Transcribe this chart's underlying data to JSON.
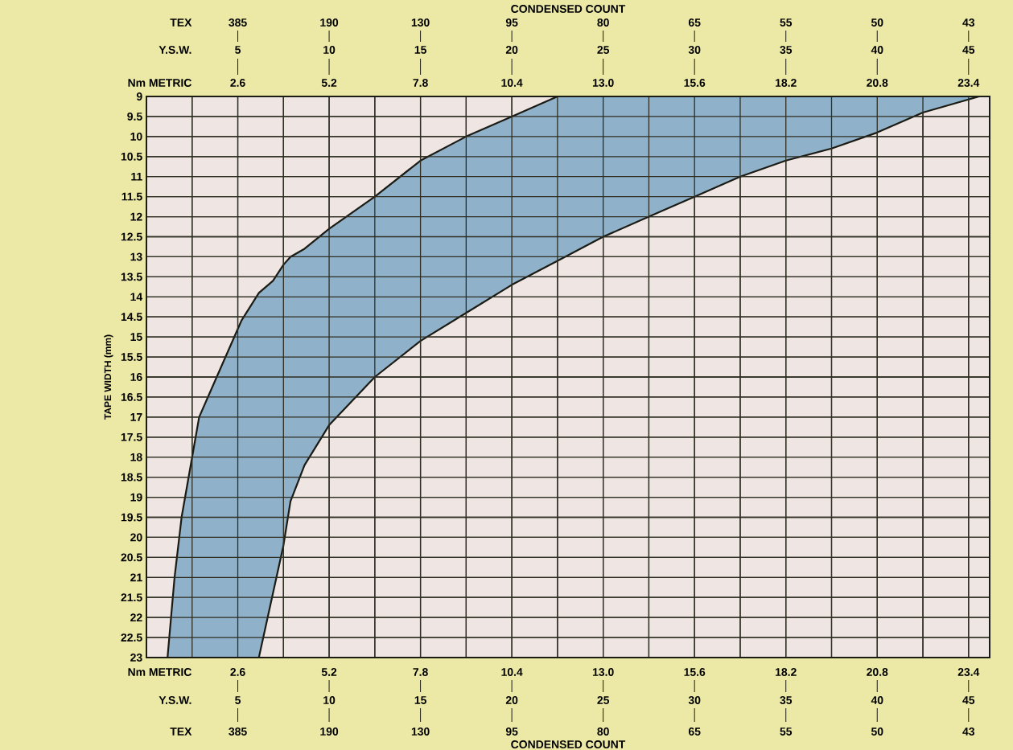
{
  "chart_data": {
    "type": "line",
    "ylabel": "TAPE WIDTH (mm)",
    "annotations": [
      "Nm  METRIC",
      "Y.S.W.",
      "TEX",
      "Nm  METRIC",
      "Y.S.W.",
      "TEX",
      "5",
      "10",
      "15",
      "20",
      "25",
      "30",
      "35",
      "40",
      "45",
      "385",
      "190",
      "130",
      "95",
      "80",
      "65",
      "55",
      "50",
      "43",
      "5",
      "10",
      "15",
      "20",
      "25",
      "30",
      "35",
      "40",
      "45",
      "385",
      "190",
      "130",
      "95",
      "80",
      "65",
      "55",
      "50",
      "43",
      "CONDENSED COUNT",
      "CONDENSED COUNT"
    ],
    "xlim": [
      0,
      24
    ],
    "x2lim": [
      0,
      24
    ],
    "xticks": [
      {
        "value": 1.3,
        "label": null
      },
      {
        "value": 2.6,
        "label": "2.6"
      },
      {
        "value": 3.9,
        "label": null
      },
      {
        "value": 5.2,
        "label": "5.2"
      },
      {
        "value": 6.5,
        "label": null
      },
      {
        "value": 7.8,
        "label": "7.8"
      },
      {
        "value": 9.1,
        "label": null
      },
      {
        "value": 10.4,
        "label": "10.4"
      },
      {
        "value": 11.7,
        "label": null
      },
      {
        "value": 13.0,
        "label": "13.0"
      },
      {
        "value": 14.3,
        "label": null
      },
      {
        "value": 15.6,
        "label": "15.6"
      },
      {
        "value": 16.9,
        "label": null
      },
      {
        "value": 18.2,
        "label": "18.2"
      },
      {
        "value": 19.5,
        "label": null
      },
      {
        "value": 20.8,
        "label": "20.8"
      },
      {
        "value": 22.1,
        "label": null
      },
      {
        "value": 23.4,
        "label": "23.4"
      }
    ],
    "x2ticks": [
      {
        "value": 2.6,
        "label": "2.6"
      },
      {
        "value": 5.2,
        "label": "5.2"
      },
      {
        "value": 7.8,
        "label": "7.8"
      },
      {
        "value": 10.4,
        "label": "10.4"
      },
      {
        "value": 13.0,
        "label": "13.0"
      },
      {
        "value": 15.6,
        "label": "15.6"
      },
      {
        "value": 18.2,
        "label": "18.2"
      },
      {
        "value": 20.8,
        "label": "20.8"
      },
      {
        "value": 23.4,
        "label": "23.4"
      }
    ],
    "ylim": [
      23,
      9
    ],
    "yticks": [
      9,
      9.5,
      10,
      10.5,
      11,
      11.5,
      12,
      12.5,
      13,
      13.5,
      14,
      14.5,
      15,
      15.5,
      16,
      16.5,
      17,
      17.5,
      18,
      18.5,
      19,
      19.5,
      20,
      20.5,
      21,
      21.5,
      22,
      22.5,
      23
    ],
    "grid": true,
    "series": [
      {
        "color": "#8fb1c9",
        "x": [
          0.6,
          0.8,
          1.0,
          1.3,
          1.5,
          2.0,
          2.7,
          3.2,
          3.6,
          3.9,
          4.1,
          4.5,
          5.2,
          6.5,
          7.8,
          9.1,
          10.4,
          11.7,
          13.0,
          14.3,
          15.6,
          16.9,
          18.2,
          19.5,
          20.8,
          22.1,
          23.7
        ],
        "lower": [
          23.0,
          21.0,
          19.5,
          18.0,
          17.0,
          16.0,
          14.6,
          13.9,
          13.6,
          13.2,
          13.0,
          12.8,
          12.3,
          11.5,
          10.6,
          10.0,
          9.5,
          9.0,
          9.0,
          9.0,
          9.0,
          9.0,
          9.0,
          9.0,
          9.0,
          9.0,
          9.0
        ],
        "values": [
          null,
          null,
          null,
          null,
          null,
          null,
          null,
          null,
          null,
          null,
          null,
          null,
          null,
          null,
          null,
          null,
          null,
          null,
          null,
          null,
          null,
          null,
          null,
          null,
          null,
          null,
          null
        ],
        "upper": [
          23.0,
          23.0,
          23.0,
          23.0,
          23.0,
          23.0,
          23.0,
          23.0,
          21.4,
          20.2,
          19.1,
          18.2,
          17.2,
          16.0,
          15.1,
          14.4,
          13.7,
          13.1,
          12.5,
          12.0,
          11.5,
          11.0,
          10.6,
          10.3,
          9.9,
          9.4,
          9.0
        ]
      }
    ]
  }
}
